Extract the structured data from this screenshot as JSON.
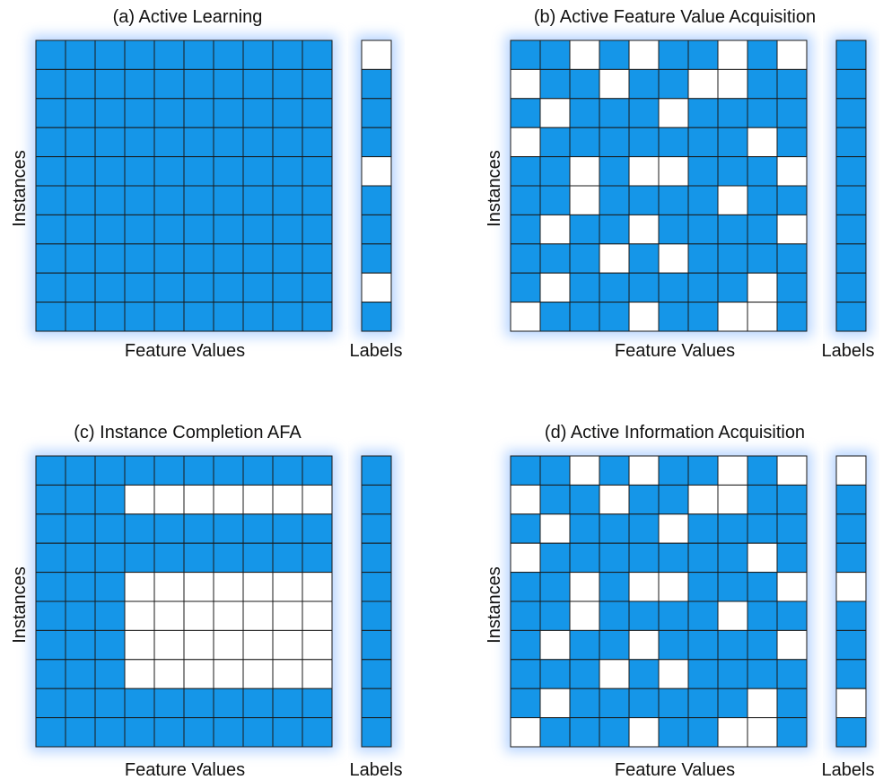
{
  "colors": {
    "filled": "#1596e8",
    "empty": "#ffffff",
    "grid_line": "#1a1a1a",
    "glow": "#7fb4ff"
  },
  "panels": [
    {
      "id": "a",
      "title": "(a) Active Learning",
      "xlabel": "Feature Values",
      "ylabel": "Instances",
      "label_col_title": "Labels",
      "matrix": [
        "1111111111",
        "1111111111",
        "1111111111",
        "1111111111",
        "1111111111",
        "1111111111",
        "1111111111",
        "1111111111",
        "1111111111",
        "1111111111"
      ],
      "labels": "0111011101"
    },
    {
      "id": "b",
      "title": "(b) Active Feature Value Acquisition",
      "xlabel": "Feature Values",
      "ylabel": "Instances",
      "label_col_title": "Labels",
      "matrix": [
        "1101011010",
        "0110110011",
        "1011101111",
        "0111111101",
        "1101001110",
        "1101111011",
        "1011011110",
        "1110101111",
        "1011111101",
        "0111011001"
      ],
      "labels": "1111111111"
    },
    {
      "id": "c",
      "title": "(c) Instance Completion AFA",
      "xlabel": "Feature Values",
      "ylabel": "Instances",
      "label_col_title": "Labels",
      "matrix": [
        "1111111111",
        "1110000000",
        "1111111111",
        "1111111111",
        "1110000000",
        "1110000000",
        "1110000000",
        "1110000000",
        "1111111111",
        "1111111111"
      ],
      "labels": "1111111111"
    },
    {
      "id": "d",
      "title": "(d) Active Information Acquisition",
      "xlabel": "Feature Values",
      "ylabel": "Instances",
      "label_col_title": "Labels",
      "matrix": [
        "1101011010",
        "0110110011",
        "1011101111",
        "0111111101",
        "1101001110",
        "1101111011",
        "1011011110",
        "1110101111",
        "1011111101",
        "0111011001"
      ],
      "labels": "0111011101"
    }
  ]
}
